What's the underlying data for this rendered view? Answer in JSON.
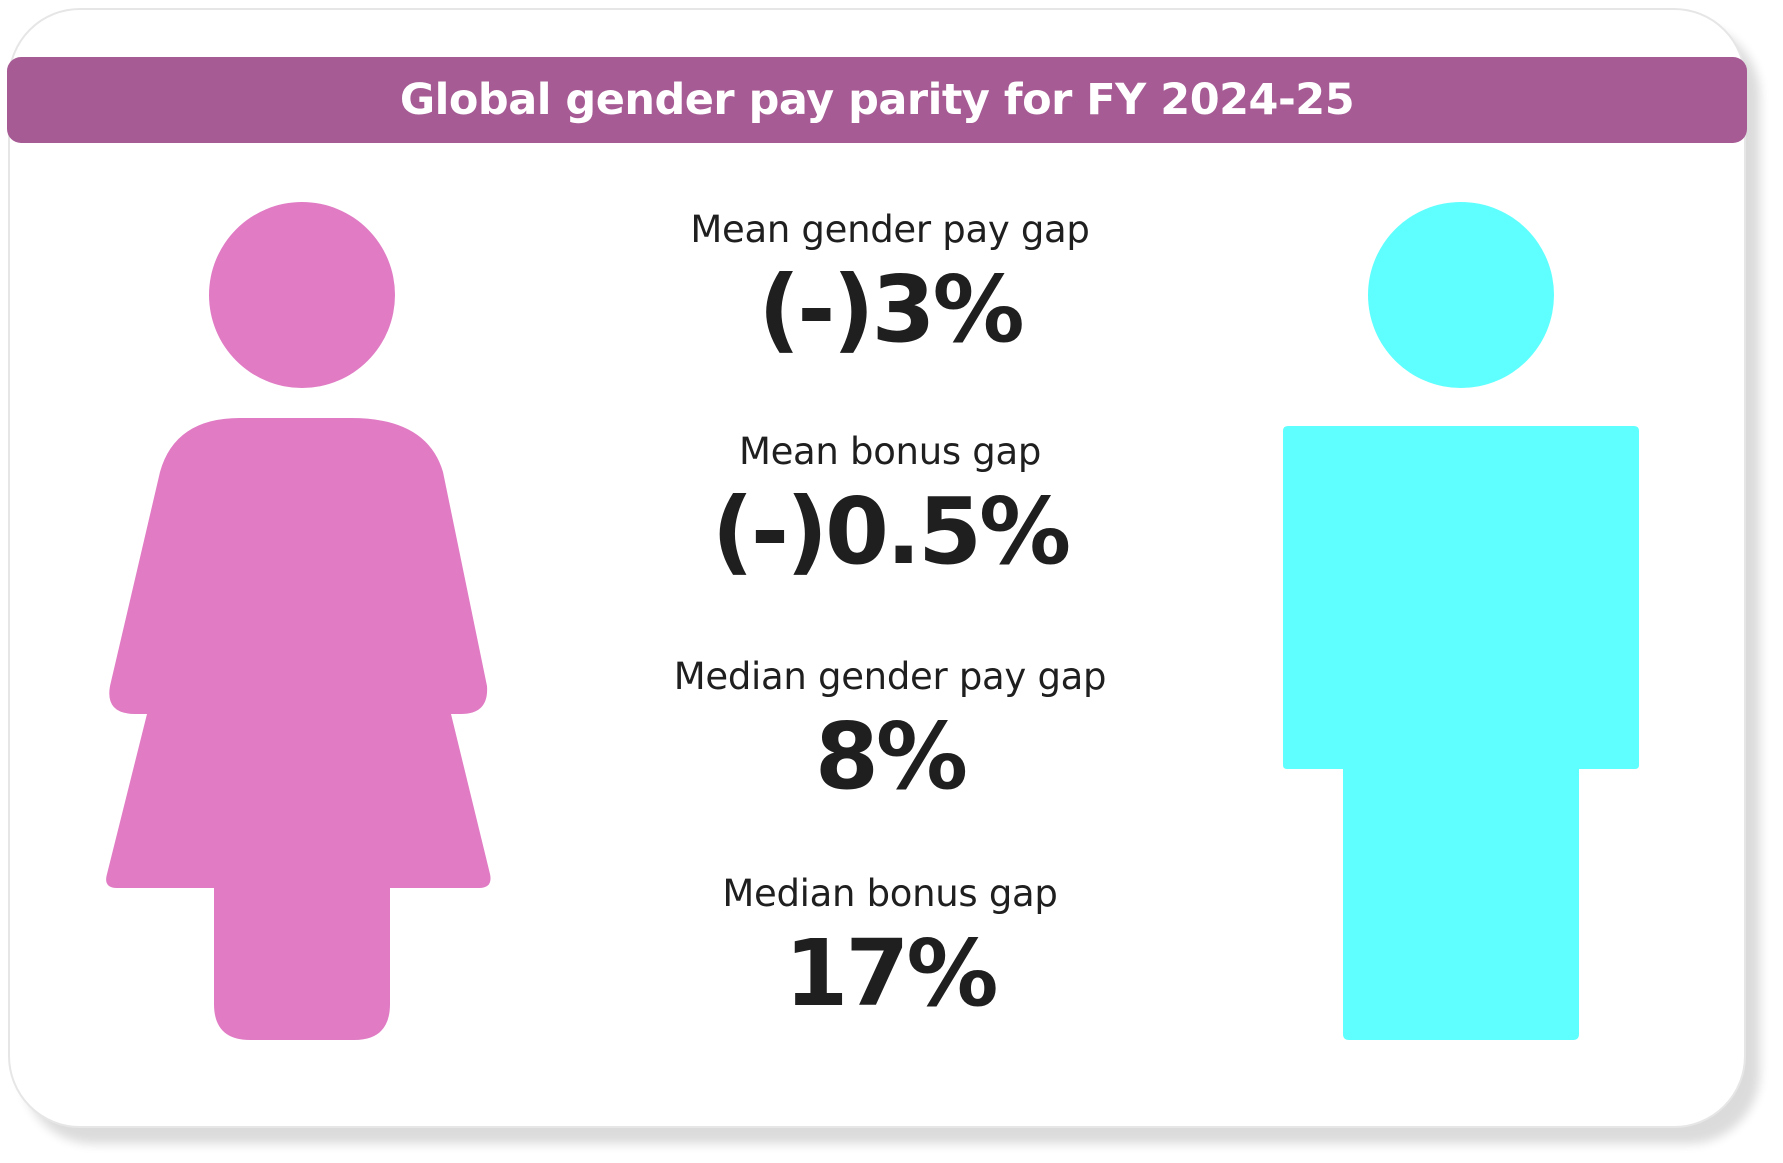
{
  "title": "Global gender pay parity for FY 2024-25",
  "colors": {
    "title_bar": "#a65b94",
    "female_figure": "#e07bc4",
    "male_figure": "#5efffe",
    "text": "#1f1f1f"
  },
  "icons": {
    "left": "female-figure-icon",
    "right": "male-figure-icon"
  },
  "stats": [
    {
      "label": "Mean gender pay gap",
      "value": "(-)3%"
    },
    {
      "label": "Mean bonus gap",
      "value": "(-)0.5%"
    },
    {
      "label": "Median gender pay gap",
      "value": "8%"
    },
    {
      "label": "Median bonus gap",
      "value": "17%"
    }
  ]
}
